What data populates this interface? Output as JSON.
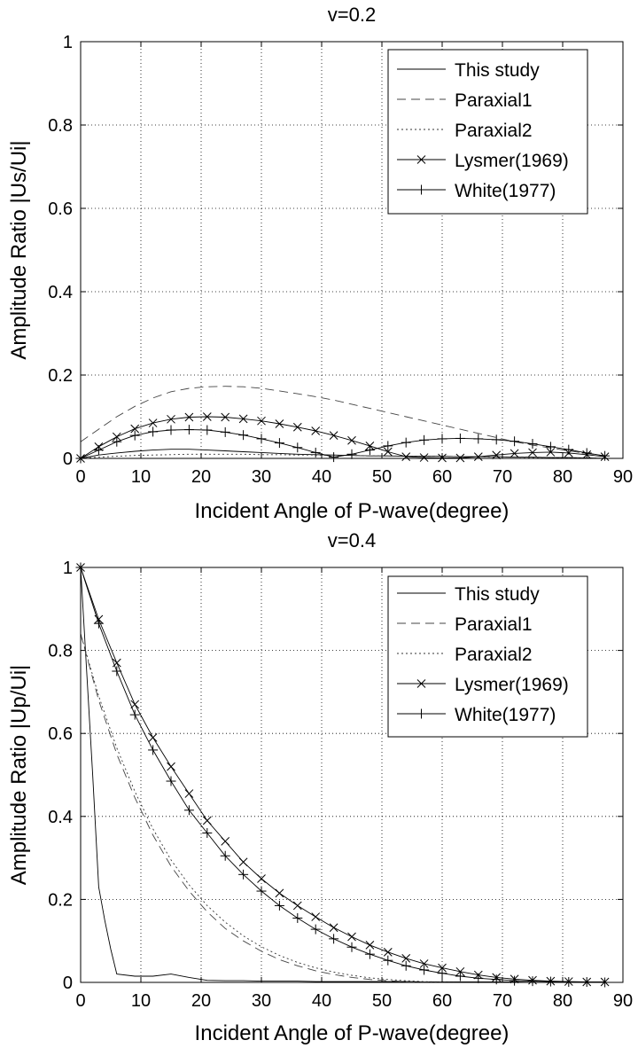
{
  "chart_data": [
    {
      "type": "line",
      "title": "v=0.2",
      "xlabel": "Incident Angle of P-wave(degree)",
      "ylabel": "Amplitude Ratio |Us/Ui|",
      "xlim": [
        0,
        90
      ],
      "ylim": [
        0,
        1
      ],
      "xticks": [
        0,
        10,
        20,
        30,
        40,
        50,
        60,
        70,
        80,
        90
      ],
      "yticks": [
        0,
        0.2,
        0.4,
        0.6,
        0.8,
        1
      ],
      "xtick_labels": [
        "0",
        "10",
        "20",
        "30",
        "40",
        "50",
        "60",
        "70",
        "80",
        "90"
      ],
      "ytick_labels": [
        "0",
        "0.2",
        "0.4",
        "0.6",
        "0.8",
        "1"
      ],
      "grid": true,
      "legend_position": "top-right",
      "series": [
        {
          "name": "This study",
          "style": "solid",
          "marker": "none",
          "x": [
            0,
            3,
            6,
            9,
            12,
            15,
            18,
            21,
            24,
            27,
            30,
            33,
            36,
            39,
            42,
            45,
            48,
            51,
            54,
            57,
            60,
            63,
            66,
            69,
            72,
            75,
            78,
            81,
            84,
            87
          ],
          "values": [
            0,
            0.008,
            0.013,
            0.017,
            0.02,
            0.022,
            0.022,
            0.02,
            0.018,
            0.016,
            0.014,
            0.012,
            0.01,
            0.009,
            0.008,
            0.007,
            0.006,
            0.006,
            0.005,
            0.005,
            0.005,
            0.004,
            0.004,
            0.004,
            0.003,
            0.003,
            0.002,
            0.002,
            0.001,
            0
          ]
        },
        {
          "name": "Paraxial1",
          "style": "dashed",
          "marker": "none",
          "x": [
            0,
            3,
            6,
            9,
            12,
            15,
            18,
            21,
            24,
            27,
            30,
            33,
            36,
            39,
            42,
            45,
            48,
            51,
            54,
            57,
            60,
            63,
            66,
            69,
            72,
            75,
            78,
            81,
            84,
            87
          ],
          "values": [
            0.04,
            0.07,
            0.1,
            0.125,
            0.145,
            0.16,
            0.168,
            0.172,
            0.173,
            0.172,
            0.168,
            0.162,
            0.155,
            0.148,
            0.14,
            0.13,
            0.12,
            0.11,
            0.1,
            0.09,
            0.08,
            0.07,
            0.06,
            0.05,
            0.04,
            0.032,
            0.025,
            0.018,
            0.012,
            0.006
          ]
        },
        {
          "name": "Paraxial2",
          "style": "dotted",
          "marker": "none",
          "x": [
            0,
            3,
            6,
            9,
            12,
            15,
            18,
            21,
            24,
            27,
            30,
            33,
            36,
            39,
            42,
            45,
            48,
            51,
            54,
            57,
            60,
            63,
            66,
            69,
            72,
            75,
            78,
            81,
            84,
            87
          ],
          "values": [
            0,
            0.003,
            0.005,
            0.007,
            0.008,
            0.009,
            0.01,
            0.01,
            0.01,
            0.01,
            0.009,
            0.009,
            0.008,
            0.008,
            0.007,
            0.007,
            0.006,
            0.006,
            0.005,
            0.005,
            0.005,
            0.004,
            0.004,
            0.003,
            0.003,
            0.002,
            0.002,
            0.001,
            0.001,
            0
          ]
        },
        {
          "name": "Lysmer(1969)",
          "style": "solid",
          "marker": "x",
          "x": [
            0,
            3,
            6,
            9,
            12,
            15,
            18,
            21,
            24,
            27,
            30,
            33,
            36,
            39,
            42,
            45,
            48,
            51,
            54,
            57,
            60,
            63,
            66,
            69,
            72,
            75,
            78,
            81,
            84,
            87
          ],
          "values": [
            0,
            0.028,
            0.052,
            0.071,
            0.085,
            0.094,
            0.099,
            0.1,
            0.099,
            0.095,
            0.09,
            0.083,
            0.075,
            0.066,
            0.055,
            0.043,
            0.03,
            0.016,
            0.004,
            0.002,
            0.001,
            0.001,
            0.004,
            0.008,
            0.012,
            0.014,
            0.015,
            0.013,
            0.009,
            0.004
          ]
        },
        {
          "name": "White(1977)",
          "style": "solid",
          "marker": "+",
          "x": [
            0,
            3,
            6,
            9,
            12,
            15,
            18,
            21,
            24,
            27,
            30,
            33,
            36,
            39,
            42,
            45,
            48,
            51,
            54,
            57,
            60,
            63,
            66,
            69,
            72,
            75,
            78,
            81,
            84,
            87
          ],
          "values": [
            0,
            0.02,
            0.04,
            0.055,
            0.064,
            0.068,
            0.069,
            0.068,
            0.063,
            0.056,
            0.047,
            0.037,
            0.026,
            0.014,
            0.003,
            0.01,
            0.02,
            0.03,
            0.038,
            0.044,
            0.047,
            0.048,
            0.047,
            0.045,
            0.041,
            0.035,
            0.028,
            0.021,
            0.013,
            0.006
          ]
        }
      ]
    },
    {
      "type": "line",
      "title": "v=0.4",
      "xlabel": "Incident Angle of P-wave(degree)",
      "ylabel": "Amplitude Ratio |Up/Ui|",
      "xlim": [
        0,
        90
      ],
      "ylim": [
        0,
        1
      ],
      "xticks": [
        0,
        10,
        20,
        30,
        40,
        50,
        60,
        70,
        80,
        90
      ],
      "yticks": [
        0,
        0.2,
        0.4,
        0.6,
        0.8,
        1
      ],
      "xtick_labels": [
        "0",
        "10",
        "20",
        "30",
        "40",
        "50",
        "60",
        "70",
        "80",
        "90"
      ],
      "ytick_labels": [
        "0",
        "0.2",
        "0.4",
        "0.6",
        "0.8",
        "1"
      ],
      "grid": true,
      "legend_position": "top-right",
      "series": [
        {
          "name": "This study",
          "style": "solid",
          "marker": "none",
          "x": [
            0,
            1,
            2,
            3,
            4,
            5,
            6,
            9,
            12,
            15,
            18,
            21,
            24,
            27,
            30,
            33,
            36,
            39,
            42,
            45,
            48,
            51,
            54,
            57,
            60,
            63,
            66,
            69,
            72,
            75,
            78,
            81,
            84,
            87
          ],
          "values": [
            1.0,
            0.75,
            0.5,
            0.23,
            0.15,
            0.08,
            0.02,
            0.015,
            0.015,
            0.02,
            0.012,
            0.005,
            0.004,
            0.004,
            0.003,
            0.003,
            0.003,
            0.002,
            0.002,
            0.002,
            0.002,
            0.002,
            0.002,
            0.001,
            0.001,
            0.001,
            0.001,
            0.001,
            0.001,
            0.0,
            0.0,
            0.0,
            0.0,
            0.0
          ]
        },
        {
          "name": "Paraxial1",
          "style": "dashed",
          "marker": "none",
          "x": [
            0,
            3,
            6,
            9,
            12,
            15,
            18,
            21,
            24,
            27,
            30,
            33,
            36,
            39,
            42,
            45,
            48,
            51,
            54,
            57,
            60,
            63,
            66,
            69,
            72,
            75,
            78,
            81,
            84,
            87
          ],
          "values": [
            0.84,
            0.68,
            0.55,
            0.445,
            0.355,
            0.28,
            0.22,
            0.17,
            0.13,
            0.1,
            0.075,
            0.055,
            0.04,
            0.028,
            0.019,
            0.012,
            0.007,
            0.004,
            0.002,
            0.001,
            0.0,
            0.0,
            0.0,
            0.0,
            0.0,
            0.0,
            0.0,
            0.0,
            0.0,
            0.0
          ]
        },
        {
          "name": "Paraxial2",
          "style": "dotted",
          "marker": "none",
          "x": [
            0,
            3,
            6,
            9,
            12,
            15,
            18,
            21,
            24,
            27,
            30,
            33,
            36,
            39,
            42,
            45,
            48,
            51,
            54,
            57,
            60,
            63,
            66,
            69,
            72,
            75,
            78,
            81,
            84,
            87
          ],
          "values": [
            0.84,
            0.69,
            0.565,
            0.46,
            0.37,
            0.295,
            0.235,
            0.185,
            0.145,
            0.112,
            0.086,
            0.065,
            0.048,
            0.035,
            0.025,
            0.017,
            0.011,
            0.007,
            0.004,
            0.002,
            0.001,
            0.0,
            0.0,
            0.0,
            0.0,
            0.0,
            0.0,
            0.0,
            0.0,
            0.0
          ]
        },
        {
          "name": "Lysmer(1969)",
          "style": "solid",
          "marker": "x",
          "x": [
            0,
            3,
            6,
            9,
            12,
            15,
            18,
            21,
            24,
            27,
            30,
            33,
            36,
            39,
            42,
            45,
            48,
            51,
            54,
            57,
            60,
            63,
            66,
            69,
            72,
            75,
            78,
            81,
            84,
            87
          ],
          "values": [
            1.0,
            0.875,
            0.77,
            0.67,
            0.59,
            0.52,
            0.455,
            0.39,
            0.34,
            0.29,
            0.25,
            0.215,
            0.185,
            0.158,
            0.132,
            0.11,
            0.09,
            0.073,
            0.058,
            0.045,
            0.035,
            0.026,
            0.018,
            0.012,
            0.008,
            0.005,
            0.003,
            0.002,
            0.001,
            0.001
          ]
        },
        {
          "name": "White(1977)",
          "style": "solid",
          "marker": "+",
          "x": [
            0,
            3,
            6,
            9,
            12,
            15,
            18,
            21,
            24,
            27,
            30,
            33,
            36,
            39,
            42,
            45,
            48,
            51,
            54,
            57,
            60,
            63,
            66,
            69,
            72,
            75,
            78,
            81,
            84,
            87
          ],
          "values": [
            1.0,
            0.865,
            0.75,
            0.645,
            0.56,
            0.485,
            0.415,
            0.36,
            0.305,
            0.26,
            0.22,
            0.185,
            0.155,
            0.128,
            0.105,
            0.085,
            0.068,
            0.053,
            0.04,
            0.03,
            0.022,
            0.015,
            0.01,
            0.007,
            0.004,
            0.003,
            0.002,
            0.001,
            0.001,
            0.0
          ]
        }
      ]
    }
  ]
}
